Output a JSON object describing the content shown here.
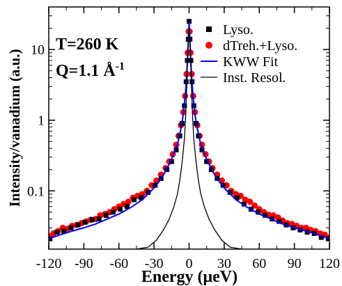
{
  "chart_data": {
    "type": "scatter",
    "xlabel": "Energy (μeV)",
    "ylabel": "Intensity/vanadium (a.u.)",
    "xlim": [
      -120,
      120
    ],
    "ylim": [
      0.015,
      40
    ],
    "yscale": "log",
    "xticks": [
      -120,
      -90,
      -60,
      -30,
      0,
      30,
      60,
      90,
      120
    ],
    "xtick_labels": [
      "-120",
      "-90",
      "-60",
      "-30",
      "0",
      "30",
      "60",
      "90",
      "120"
    ],
    "yticks": [
      0.1,
      1,
      10
    ],
    "ytick_labels": [
      "0.1",
      "1",
      "10"
    ],
    "grid": false,
    "legend_position": "top-right",
    "annotations": {
      "temperature": "T=260 K",
      "q_prefix": "Q=1.1 ",
      "q_unit": "Å",
      "q_exponent": "-1"
    },
    "series": [
      {
        "name": "Lyso.",
        "kind": "scatter",
        "marker": "square",
        "color": "#000000",
        "x": [
          -119,
          -113,
          -107,
          -101,
          -95,
          -89,
          -83,
          -77,
          -71,
          -65,
          -59,
          -53,
          -47,
          -41,
          -35,
          -29,
          -24,
          -19,
          -15,
          -11,
          -8,
          -6,
          -4,
          -2.5,
          -1.5,
          -0.7,
          0,
          0.7,
          1.5,
          2.5,
          4,
          6,
          8,
          11,
          15,
          19,
          24,
          29,
          35,
          41,
          47,
          53,
          59,
          65,
          71,
          77,
          83,
          89,
          95,
          101,
          107,
          113,
          119
        ],
        "y": [
          0.021,
          0.026,
          0.027,
          0.03,
          0.033,
          0.036,
          0.039,
          0.04,
          0.045,
          0.05,
          0.055,
          0.06,
          0.075,
          0.08,
          0.095,
          0.12,
          0.15,
          0.2,
          0.26,
          0.38,
          0.6,
          0.9,
          1.6,
          3.5,
          7,
          14,
          25,
          14,
          7,
          3.5,
          1.6,
          0.9,
          0.6,
          0.38,
          0.26,
          0.2,
          0.15,
          0.12,
          0.095,
          0.08,
          0.065,
          0.055,
          0.05,
          0.045,
          0.04,
          0.037,
          0.033,
          0.03,
          0.028,
          0.026,
          0.025,
          0.022,
          0.021
        ]
      },
      {
        "name": "dTreh.+Lyso.",
        "kind": "scatter",
        "marker": "circle",
        "color": "#ff0000",
        "x": [
          -120,
          -116,
          -112,
          -108,
          -104,
          -100,
          -96,
          -92,
          -88,
          -84,
          -80,
          -76,
          -72,
          -68,
          -64,
          -60,
          -56,
          -52,
          -48,
          -44,
          -40,
          -36,
          -32,
          -28,
          -24,
          -20,
          -17,
          -14,
          -11,
          -9,
          -7,
          -5,
          -3.5,
          -2.2,
          -1.2,
          -0.4,
          0.4,
          1.2,
          2.2,
          3.5,
          5,
          7,
          9,
          11,
          14,
          17,
          20,
          24,
          28,
          32,
          36,
          40,
          44,
          48,
          52,
          56,
          60,
          64,
          68,
          72,
          76,
          80,
          84,
          88,
          92,
          96,
          100,
          104,
          108,
          112,
          116,
          120
        ],
        "y": [
          0.023,
          0.025,
          0.027,
          0.03,
          0.029,
          0.032,
          0.033,
          0.035,
          0.037,
          0.039,
          0.04,
          0.045,
          0.047,
          0.05,
          0.055,
          0.06,
          0.065,
          0.07,
          0.08,
          0.085,
          0.09,
          0.1,
          0.12,
          0.14,
          0.17,
          0.21,
          0.26,
          0.33,
          0.45,
          0.6,
          0.85,
          1.3,
          2.2,
          4.5,
          9,
          18,
          18,
          9,
          4.5,
          2.2,
          1.3,
          0.85,
          0.6,
          0.45,
          0.33,
          0.26,
          0.21,
          0.17,
          0.14,
          0.12,
          0.1,
          0.09,
          0.085,
          0.075,
          0.07,
          0.062,
          0.055,
          0.05,
          0.046,
          0.045,
          0.042,
          0.038,
          0.035,
          0.034,
          0.032,
          0.03,
          0.03,
          0.028,
          0.027,
          0.025,
          0.024,
          0.022
        ]
      },
      {
        "name": "KWW Fit",
        "kind": "line",
        "color": "#0000ff",
        "x": [
          -120,
          -110,
          -100,
          -90,
          -80,
          -70,
          -60,
          -50,
          -40,
          -30,
          -25,
          -20,
          -15,
          -10,
          -7,
          -5,
          -3,
          -2,
          -1,
          0,
          1,
          2,
          3,
          5,
          7,
          10,
          15,
          20,
          25,
          30,
          40,
          50,
          60,
          70,
          80,
          90,
          100,
          110,
          120
        ],
        "y": [
          0.021,
          0.024,
          0.027,
          0.03,
          0.034,
          0.04,
          0.047,
          0.058,
          0.075,
          0.11,
          0.14,
          0.19,
          0.28,
          0.45,
          0.75,
          1.2,
          2.6,
          4.5,
          10,
          25,
          10,
          4.5,
          2.6,
          1.2,
          0.75,
          0.45,
          0.28,
          0.19,
          0.14,
          0.11,
          0.075,
          0.058,
          0.047,
          0.04,
          0.034,
          0.03,
          0.027,
          0.024,
          0.021
        ]
      },
      {
        "name": "Inst. Resol.",
        "kind": "line",
        "color": "#000000",
        "x": [
          -45,
          -35,
          -28,
          -22,
          -17,
          -13,
          -10,
          -8,
          -6,
          -4,
          -3,
          -2,
          -1,
          0,
          1,
          2,
          3,
          4,
          6,
          8,
          10,
          13,
          17,
          22,
          28,
          35,
          45
        ],
        "y": [
          0.015,
          0.016,
          0.02,
          0.028,
          0.04,
          0.06,
          0.09,
          0.14,
          0.25,
          0.55,
          1.1,
          3,
          10,
          20,
          10,
          3,
          1.1,
          0.55,
          0.25,
          0.14,
          0.09,
          0.06,
          0.04,
          0.028,
          0.02,
          0.016,
          0.015
        ]
      }
    ]
  }
}
